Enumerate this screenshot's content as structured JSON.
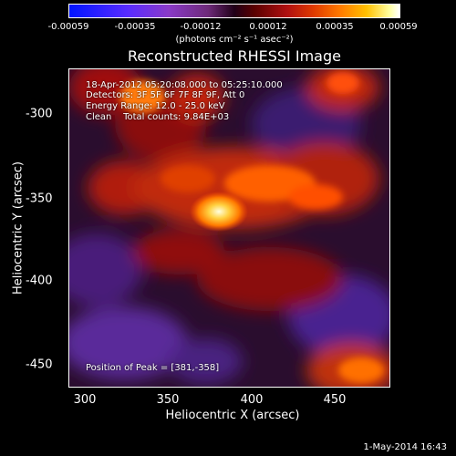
{
  "colorbar": {
    "ticks": [
      "-0.00059",
      "-0.00035",
      "-0.00012",
      "0.00012",
      "0.00035",
      "0.00059"
    ],
    "unit_label": "(photons cm⁻² s⁻¹ asec⁻²)"
  },
  "title": "Reconstructed RHESSI Image",
  "info": {
    "time": "18-Apr-2012 05:20:08.000 to 05:25:10.000",
    "detectors": "Detectors: 3F 5F 6F 7F 8F 9F, Att 0",
    "energy": "Energy Range: 12.0 - 25.0 keV",
    "clean": "Clean    Total counts: 9.84E+03",
    "peak": "Position of Peak = [381,-358]"
  },
  "axes": {
    "xlabel": "Heliocentric X (arcsec)",
    "ylabel": "Heliocentric Y (arcsec)",
    "xticks": [
      "300",
      "350",
      "400",
      "450"
    ],
    "yticks": [
      "-300",
      "-350",
      "-400",
      "-450"
    ],
    "xlim": [
      290,
      482
    ],
    "ylim": [
      -272,
      -467
    ]
  },
  "footer": {
    "date": "1-May-2014 16:43"
  }
}
